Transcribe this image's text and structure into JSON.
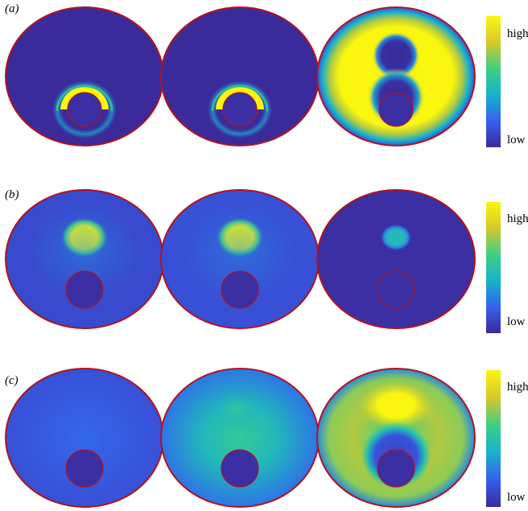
{
  "colors": {
    "low": "#3b2a9a",
    "mid": "#17b3c9",
    "high": "#fbf60f",
    "outline": "#b0141e"
  },
  "colormap": [
    "#3b2a9a",
    "#3660f0",
    "#17b3c9",
    "#3fcf84",
    "#d8c72a",
    "#fbf60f"
  ],
  "rows": [
    {
      "label": "(a)",
      "colorbar": {
        "high": "high",
        "low": "low"
      },
      "panels": [
        {
          "base_level": 0.0,
          "hotspot": "arc",
          "hot_level": 1.0
        },
        {
          "base_level": 0.0,
          "hotspot": "arc",
          "hot_level": 1.0
        },
        {
          "base_level": 1.0,
          "hotspot": "figure-eight-holes",
          "hot_level": 0.0
        }
      ]
    },
    {
      "label": "(b)",
      "colorbar": {
        "high": "high",
        "low": "low"
      },
      "panels": [
        {
          "base_level": 0.12,
          "hotspot": "blob",
          "hot_level": 1.0
        },
        {
          "base_level": 0.14,
          "hotspot": "blob",
          "hot_level": 1.0
        },
        {
          "base_level": 0.02,
          "hotspot": "small-blob",
          "hot_level": 0.45
        }
      ]
    },
    {
      "label": "(c)",
      "colorbar": {
        "high": "high",
        "low": "low"
      },
      "panels": [
        {
          "base_level": 0.18,
          "hotspot": "none",
          "hot_level": 0.18
        },
        {
          "base_level": 0.35,
          "hotspot": "diffuse",
          "hot_level": 0.5
        },
        {
          "base_level": 0.75,
          "hotspot": "ring-hot",
          "hot_level": 1.0
        }
      ]
    }
  ]
}
